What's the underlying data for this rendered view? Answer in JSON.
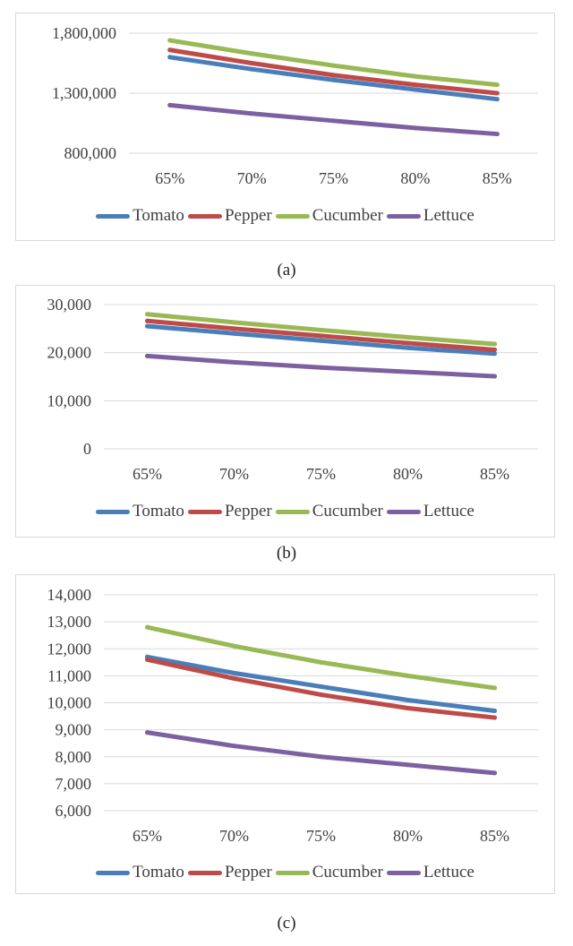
{
  "chart_data": [
    {
      "type": "line",
      "panel": "a",
      "caption": "(a)",
      "categories": [
        "65%",
        "70%",
        "75%",
        "80%",
        "85%"
      ],
      "ylim": [
        800000,
        1800000
      ],
      "yticks": [
        800000,
        1300000,
        1800000
      ],
      "ytick_labels": [
        "800,000",
        "1,300,000",
        "1,800,000"
      ],
      "series": [
        {
          "name": "Tomato",
          "color": "#4a7ebb",
          "values": [
            1600000,
            1500000,
            1410000,
            1330000,
            1250000
          ]
        },
        {
          "name": "Pepper",
          "color": "#be4b48",
          "values": [
            1660000,
            1550000,
            1450000,
            1370000,
            1300000
          ]
        },
        {
          "name": "Cucumber",
          "color": "#98b954",
          "values": [
            1740000,
            1630000,
            1530000,
            1440000,
            1370000
          ]
        },
        {
          "name": "Lettuce",
          "color": "#7d60a0",
          "values": [
            1200000,
            1130000,
            1070000,
            1010000,
            960000
          ]
        }
      ]
    },
    {
      "type": "line",
      "panel": "b",
      "caption": "(b)",
      "categories": [
        "65%",
        "70%",
        "75%",
        "80%",
        "85%"
      ],
      "ylim": [
        0,
        30000
      ],
      "yticks": [
        0,
        10000,
        20000,
        30000
      ],
      "ytick_labels": [
        "0",
        "10,000",
        "20,000",
        "30,000"
      ],
      "series": [
        {
          "name": "Tomato",
          "color": "#4a7ebb",
          "values": [
            25500,
            24000,
            22500,
            21000,
            19800
          ]
        },
        {
          "name": "Pepper",
          "color": "#be4b48",
          "values": [
            26600,
            25000,
            23500,
            22000,
            20600
          ]
        },
        {
          "name": "Cucumber",
          "color": "#98b954",
          "values": [
            28000,
            26300,
            24700,
            23200,
            21800
          ]
        },
        {
          "name": "Lettuce",
          "color": "#7d60a0",
          "values": [
            19300,
            18000,
            16900,
            16000,
            15100
          ]
        }
      ]
    },
    {
      "type": "line",
      "panel": "c",
      "caption": "(c)",
      "categories": [
        "65%",
        "70%",
        "75%",
        "80%",
        "85%"
      ],
      "ylim": [
        6000,
        14000
      ],
      "yticks": [
        6000,
        7000,
        8000,
        9000,
        10000,
        11000,
        12000,
        13000,
        14000
      ],
      "ytick_labels": [
        "6,000",
        "7,000",
        "8,000",
        "9,000",
        "10,000",
        "11,000",
        "12,000",
        "13,000",
        "14,000"
      ],
      "series": [
        {
          "name": "Tomato",
          "color": "#4a7ebb",
          "values": [
            11700,
            11100,
            10600,
            10100,
            9700
          ]
        },
        {
          "name": "Pepper",
          "color": "#be4b48",
          "values": [
            11600,
            10900,
            10300,
            9800,
            9450
          ]
        },
        {
          "name": "Cucumber",
          "color": "#98b954",
          "values": [
            12800,
            12100,
            11500,
            11000,
            10550
          ]
        },
        {
          "name": "Lettuce",
          "color": "#7d60a0",
          "values": [
            8900,
            8400,
            8000,
            7700,
            7400
          ]
        }
      ]
    }
  ]
}
